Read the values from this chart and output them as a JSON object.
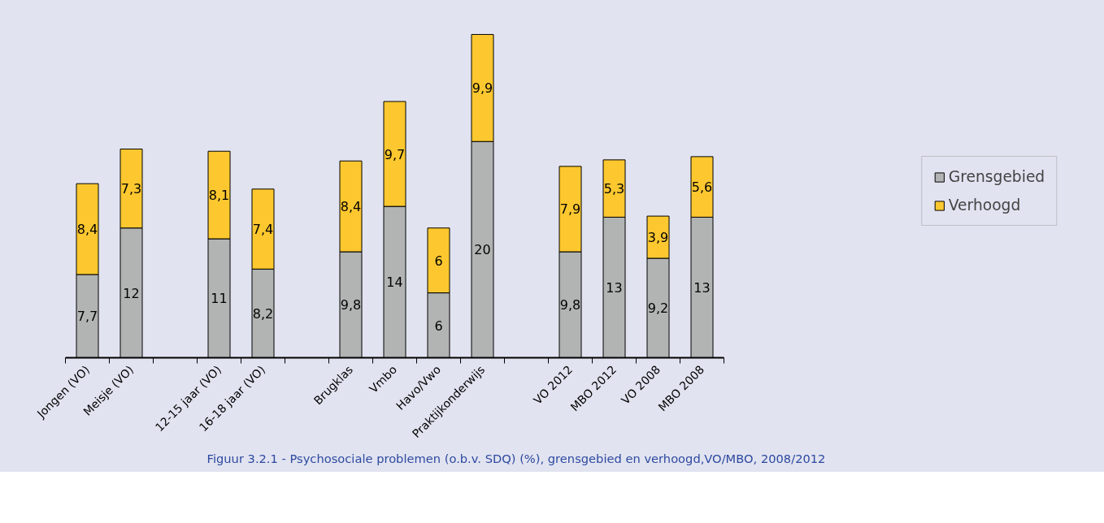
{
  "chart_data": {
    "type": "bar",
    "stacked": true,
    "categories": [
      "Jongen (VO)",
      "Meisje (VO)",
      null,
      "12-15 jaar (VO)",
      "16-18 jaar (VO)",
      null,
      "Brugklas",
      "Vmbo",
      "Havo/Vwo",
      "Praktijkonderwijs",
      null,
      "VO 2012",
      "MBO 2012",
      "VO 2008",
      "MBO 2008"
    ],
    "series": [
      {
        "name": "Grensgebied",
        "color": "#b2b4b3",
        "values": [
          7.7,
          12,
          null,
          11,
          8.2,
          null,
          9.8,
          14,
          6,
          20,
          null,
          9.8,
          13,
          9.2,
          13
        ],
        "value_labels": [
          "7,7",
          "12",
          null,
          "11",
          "8,2",
          null,
          "9,8",
          "14",
          "6",
          "20",
          null,
          "9,8",
          "13",
          "9,2",
          "13"
        ]
      },
      {
        "name": "Verhoogd",
        "color": "#fdc82f",
        "values": [
          8.4,
          7.3,
          null,
          8.1,
          7.4,
          null,
          8.4,
          9.7,
          6,
          9.9,
          null,
          7.9,
          5.3,
          3.9,
          5.6
        ],
        "value_labels": [
          "8,4",
          "7,3",
          null,
          "8,1",
          "7,4",
          null,
          "8,4",
          "9,7",
          "6",
          "9,9",
          null,
          "7,9",
          "5,3",
          "3,9",
          "5,6"
        ]
      }
    ],
    "legend": "right",
    "grid": false,
    "annotations": [
      "Figuur 3.2.1 - Psychosociale problemen (o.b.v. SDQ) (%), grensgebied en verhoogd,VO/MBO, 2008/2012"
    ]
  }
}
